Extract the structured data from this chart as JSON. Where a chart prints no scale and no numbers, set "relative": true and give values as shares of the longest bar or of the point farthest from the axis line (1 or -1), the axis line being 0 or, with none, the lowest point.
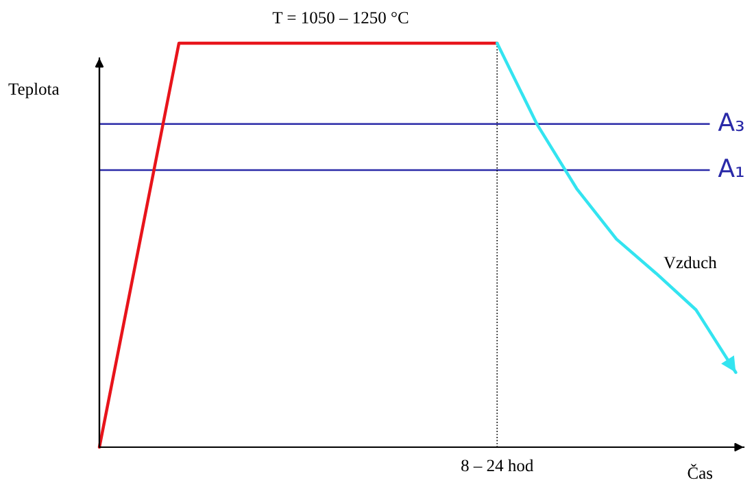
{
  "chart_data": {
    "type": "line",
    "title": "T = 1050 – 1250 °C",
    "xlabel": "Čas",
    "ylabel": "Teplota",
    "relative": true,
    "legend": false,
    "marker": "none",
    "line_style": "solid",
    "annotations": [
      "Vzduch"
    ],
    "categories": [
      null,
      null,
      null,
      null,
      null,
      null,
      null,
      null,
      null,
      null,
      null,
      null,
      null,
      null,
      null,
      null,
      null
    ],
    "series": [
      {
        "color": "#e8141b",
        "values": [
          0,
          0.5,
          1,
          1,
          1,
          1,
          1,
          1,
          1,
          1,
          1,
          null,
          null,
          null,
          null,
          null,
          null
        ]
      },
      {
        "color": "#33e4f0",
        "values": [
          null,
          null,
          null,
          null,
          null,
          null,
          null,
          null,
          null,
          null,
          1,
          0.8,
          0.64,
          0.515,
          0.43,
          0.34,
          0.185
        ]
      }
    ],
    "ref_lines": [
      {
        "axis": "y",
        "value": 0.8,
        "label": "A₃",
        "color": "#2a2aa8",
        "line_style": "solid"
      },
      {
        "axis": "y",
        "value": 0.686,
        "label": "A₁",
        "color": "#2a2aa8",
        "line_style": "solid"
      },
      {
        "axis": "x",
        "label": "8 – 24 hod",
        "color": "#000000",
        "line_style": "dotted"
      }
    ]
  }
}
